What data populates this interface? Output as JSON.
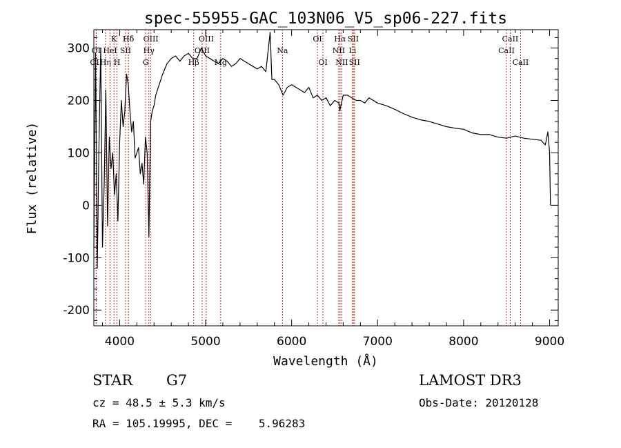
{
  "chart_data": {
    "type": "line",
    "title": "spec-55955-GAC_103N06_V5_sp06-227.fits",
    "xlabel": "Wavelength (Å)",
    "ylabel": "Flux (relative)",
    "xlim": [
      3700,
      9100
    ],
    "ylim": [
      -230,
      335
    ],
    "xticks": [
      4000,
      5000,
      6000,
      7000,
      8000,
      9000
    ],
    "yticks": [
      -200,
      -100,
      0,
      100,
      200,
      300
    ],
    "grid": false,
    "series": [
      {
        "name": "spectrum",
        "x": [
          3700,
          3720,
          3740,
          3760,
          3780,
          3800,
          3820,
          3840,
          3860,
          3880,
          3900,
          3920,
          3940,
          3960,
          3980,
          4000,
          4020,
          4040,
          4060,
          4080,
          4100,
          4120,
          4140,
          4160,
          4180,
          4200,
          4220,
          4240,
          4260,
          4280,
          4300,
          4320,
          4340,
          4360,
          4380,
          4400,
          4420,
          4440,
          4460,
          4480,
          4500,
          4550,
          4600,
          4650,
          4700,
          4750,
          4800,
          4850,
          4900,
          4950,
          5000,
          5050,
          5100,
          5150,
          5200,
          5250,
          5300,
          5350,
          5400,
          5450,
          5500,
          5550,
          5600,
          5650,
          5700,
          5750,
          5770,
          5800,
          5850,
          5900,
          5950,
          6000,
          6050,
          6100,
          6150,
          6200,
          6250,
          6300,
          6350,
          6400,
          6450,
          6500,
          6550,
          6560,
          6600,
          6650,
          6700,
          6750,
          6800,
          6850,
          6900,
          6950,
          7000,
          7100,
          7200,
          7300,
          7400,
          7500,
          7600,
          7700,
          7800,
          7900,
          8000,
          8100,
          8200,
          8300,
          8400,
          8500,
          8600,
          8700,
          8800,
          8900,
          8950,
          8980,
          9000,
          9010
        ],
        "y": [
          -80,
          290,
          -120,
          120,
          300,
          -80,
          40,
          220,
          -40,
          130,
          70,
          100,
          20,
          60,
          -30,
          120,
          200,
          150,
          180,
          250,
          230,
          180,
          140,
          160,
          90,
          100,
          110,
          60,
          80,
          40,
          130,
          100,
          -60,
          160,
          180,
          190,
          210,
          220,
          230,
          240,
          250,
          270,
          280,
          285,
          275,
          285,
          290,
          280,
          280,
          300,
          285,
          280,
          275,
          270,
          280,
          275,
          265,
          270,
          280,
          275,
          270,
          265,
          260,
          265,
          255,
          330,
          240,
          240,
          230,
          210,
          225,
          230,
          225,
          220,
          215,
          225,
          205,
          210,
          200,
          205,
          190,
          200,
          195,
          180,
          210,
          210,
          205,
          200,
          200,
          195,
          205,
          200,
          195,
          190,
          183,
          175,
          168,
          163,
          160,
          155,
          150,
          147,
          145,
          138,
          135,
          135,
          130,
          128,
          132,
          128,
          126,
          124,
          115,
          140,
          100,
          0
        ]
      }
    ],
    "line_markers": [
      {
        "name": "Hδ",
        "x": 4102,
        "row": 0
      },
      {
        "name": "K",
        "x": 3934,
        "row": 0
      },
      {
        "name": "Hδ",
        "x": 4102,
        "row": 0
      },
      {
        "name": "OIII",
        "x": 4363,
        "row": 0
      },
      {
        "name": "OIII",
        "x": 5007,
        "row": 0
      },
      {
        "name": "OI",
        "x": 6300,
        "row": 0
      },
      {
        "name": "Hα",
        "x": 6563,
        "row": 0
      },
      {
        "name": "SII",
        "x": 6717,
        "row": 0
      },
      {
        "name": "CaII",
        "x": 8542,
        "row": 0
      },
      {
        "name": "OI",
        "x": 3727,
        "row": 1
      },
      {
        "name": "HeI",
        "x": 3889,
        "row": 1
      },
      {
        "name": "SII",
        "x": 4069,
        "row": 1
      },
      {
        "name": "Hγ",
        "x": 4340,
        "row": 1
      },
      {
        "name": "OIII",
        "x": 4959,
        "row": 1
      },
      {
        "name": "Na",
        "x": 5893,
        "row": 1
      },
      {
        "name": "NII",
        "x": 6548,
        "row": 1
      },
      {
        "name": "Li",
        "x": 6708,
        "row": 1
      },
      {
        "name": "CaII",
        "x": 8498,
        "row": 1
      },
      {
        "name": "OII",
        "x": 3727,
        "row": 2
      },
      {
        "name": "Hη",
        "x": 3835,
        "row": 2
      },
      {
        "name": "H",
        "x": 3969,
        "row": 2
      },
      {
        "name": "G",
        "x": 4304,
        "row": 2
      },
      {
        "name": "Hβ",
        "x": 4861,
        "row": 2
      },
      {
        "name": "Mg",
        "x": 5175,
        "row": 2
      },
      {
        "name": "OI",
        "x": 6364,
        "row": 2
      },
      {
        "name": "NII",
        "x": 6584,
        "row": 2
      },
      {
        "name": "SII",
        "x": 6731,
        "row": 2
      },
      {
        "name": "CaII",
        "x": 8662,
        "row": 2
      }
    ],
    "marker_color": "#cc2222"
  },
  "info": {
    "object_class": "STAR",
    "subclass": "G7",
    "survey": "LAMOST DR3",
    "redshift": "cz = 48.5 ± 5.3 km/s",
    "obs_date": "Obs-Date: 20120128",
    "coords": "RA = 105.19995, DEC =    5.96283"
  }
}
